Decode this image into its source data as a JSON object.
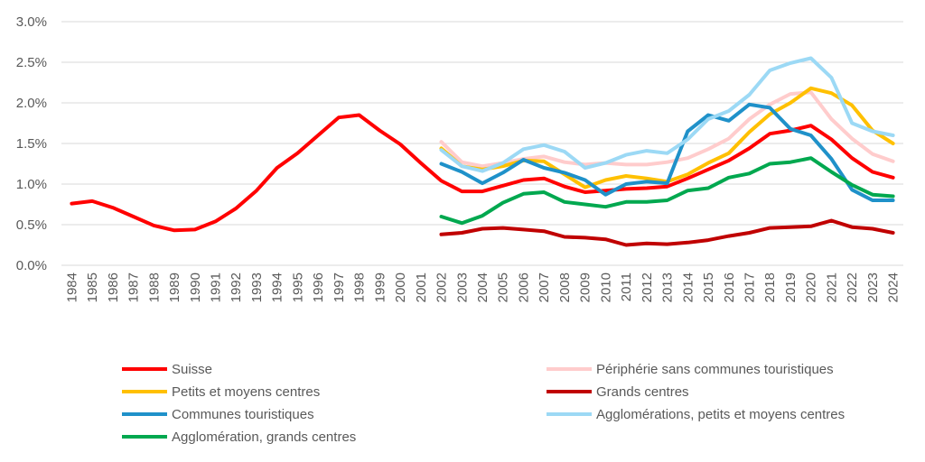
{
  "chart_data": {
    "type": "line",
    "title": "",
    "xlabel": "",
    "ylabel": "",
    "ylim": [
      0,
      3.0
    ],
    "y_ticks": [
      "0.0%",
      "0.5%",
      "1.0%",
      "1.5%",
      "2.0%",
      "2.5%",
      "3.0%"
    ],
    "grid": "horizontal",
    "legend_position": "bottom",
    "x": [
      "1984",
      "1985",
      "1986",
      "1987",
      "1988",
      "1989",
      "1990",
      "1991",
      "1992",
      "1993",
      "1994",
      "1995",
      "1996",
      "1997",
      "1998",
      "1999",
      "2000",
      "2001",
      "2002",
      "2003",
      "2004",
      "2005",
      "2006",
      "2007",
      "2008",
      "2009",
      "2010",
      "2011",
      "2012",
      "2013",
      "2014",
      "2015",
      "2016",
      "2017",
      "2018",
      "2019",
      "2020",
      "2021",
      "2022",
      "2023",
      "2024"
    ],
    "series": [
      {
        "name": "Suisse",
        "color": "#ff0000",
        "values": [
          0.76,
          0.79,
          0.71,
          0.6,
          0.49,
          0.43,
          0.44,
          0.54,
          0.7,
          0.92,
          1.2,
          1.38,
          1.6,
          1.82,
          1.85,
          1.66,
          1.49,
          1.26,
          1.04,
          0.91,
          0.91,
          0.98,
          1.05,
          1.07,
          0.97,
          0.9,
          0.92,
          0.94,
          0.95,
          0.97,
          1.07,
          1.18,
          1.29,
          1.44,
          1.62,
          1.66,
          1.72,
          1.55,
          1.32,
          1.15,
          1.08
        ]
      },
      {
        "name": "Périphérie sans communes touristiques",
        "color": "#ffcccc",
        "values": [
          null,
          null,
          null,
          null,
          null,
          null,
          null,
          null,
          null,
          null,
          null,
          null,
          null,
          null,
          null,
          null,
          null,
          null,
          1.52,
          1.27,
          1.22,
          1.26,
          1.31,
          1.34,
          1.27,
          1.24,
          1.26,
          1.24,
          1.24,
          1.27,
          1.32,
          1.43,
          1.56,
          1.8,
          1.98,
          2.11,
          2.13,
          1.8,
          1.56,
          1.37,
          1.28
        ]
      },
      {
        "name": "Petits et moyens centres",
        "color": "#ffc000",
        "values": [
          null,
          null,
          null,
          null,
          null,
          null,
          null,
          null,
          null,
          null,
          null,
          null,
          null,
          null,
          null,
          null,
          null,
          null,
          1.44,
          1.22,
          1.18,
          1.22,
          1.29,
          1.28,
          1.12,
          0.96,
          1.05,
          1.1,
          1.07,
          1.03,
          1.12,
          1.26,
          1.38,
          1.64,
          1.86,
          2.0,
          2.18,
          2.12,
          1.97,
          1.66,
          1.5
        ]
      },
      {
        "name": "Grands centres",
        "color": "#c00000",
        "values": [
          null,
          null,
          null,
          null,
          null,
          null,
          null,
          null,
          null,
          null,
          null,
          null,
          null,
          null,
          null,
          null,
          null,
          null,
          0.38,
          0.4,
          0.45,
          0.46,
          0.44,
          0.42,
          0.35,
          0.34,
          0.32,
          0.25,
          0.27,
          0.26,
          0.28,
          0.31,
          0.36,
          0.4,
          0.46,
          0.47,
          0.48,
          0.55,
          0.47,
          0.45,
          0.4
        ]
      },
      {
        "name": "Communes touristiques",
        "color": "#1f91c9",
        "values": [
          null,
          null,
          null,
          null,
          null,
          null,
          null,
          null,
          null,
          null,
          null,
          null,
          null,
          null,
          null,
          null,
          null,
          null,
          1.25,
          1.15,
          1.01,
          1.14,
          1.3,
          1.2,
          1.14,
          1.05,
          0.87,
          1.0,
          1.03,
          1.01,
          1.65,
          1.85,
          1.78,
          1.98,
          1.94,
          1.68,
          1.6,
          1.31,
          0.93,
          0.8,
          0.8
        ]
      },
      {
        "name": "Agglomérations, petits et moyens centres",
        "color": "#9cd9f5",
        "values": [
          null,
          null,
          null,
          null,
          null,
          null,
          null,
          null,
          null,
          null,
          null,
          null,
          null,
          null,
          null,
          null,
          null,
          null,
          1.42,
          1.22,
          1.16,
          1.26,
          1.43,
          1.48,
          1.4,
          1.2,
          1.26,
          1.36,
          1.41,
          1.38,
          1.55,
          1.8,
          1.9,
          2.1,
          2.4,
          2.49,
          2.55,
          2.31,
          1.75,
          1.65,
          1.6
        ]
      },
      {
        "name": "Agglomération, grands centres",
        "color": "#00a84f",
        "values": [
          null,
          null,
          null,
          null,
          null,
          null,
          null,
          null,
          null,
          null,
          null,
          null,
          null,
          null,
          null,
          null,
          null,
          null,
          0.6,
          0.52,
          0.61,
          0.77,
          0.88,
          0.9,
          0.78,
          0.75,
          0.72,
          0.78,
          0.78,
          0.8,
          0.92,
          0.95,
          1.08,
          1.13,
          1.25,
          1.27,
          1.32,
          1.15,
          0.99,
          0.87,
          0.85
        ]
      }
    ]
  }
}
